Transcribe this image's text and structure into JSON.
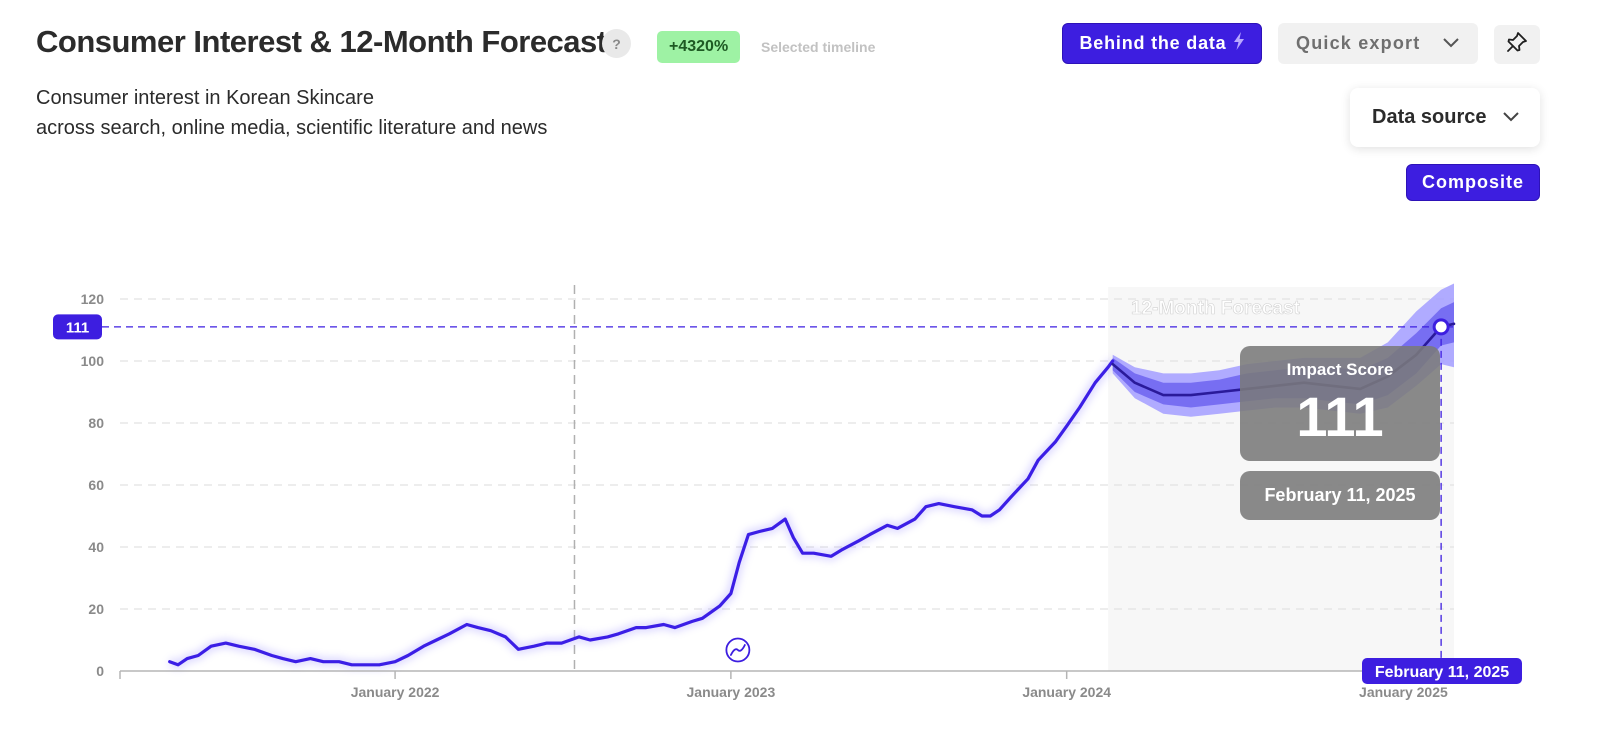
{
  "header": {
    "title": "Consumer Interest & 12-Month Forecast",
    "help_label": "?",
    "change_badge": "+4320%",
    "change_note": "Selected timeline",
    "subtitle_line1": "Consumer interest in Korean Skincare",
    "subtitle_line2": "across search, online media, scientific literature and news"
  },
  "toolbar": {
    "behind_label": "Behind the data",
    "export_label": "Quick export",
    "data_source_label": "Data source",
    "composite_label": "Composite"
  },
  "colors": {
    "accent": "#3d1ee0",
    "line": "#3b1ee6",
    "badge_bg": "#9ef2a4",
    "band_outer": "#a7a2ff",
    "band_inner": "#6d63f0"
  },
  "chart_data": {
    "type": "line",
    "title": "Consumer Interest & 12-Month Forecast",
    "ylim": [
      0,
      120
    ],
    "yticks": [
      0,
      20,
      40,
      60,
      80,
      100,
      120
    ],
    "x_tick_labels": [
      "January 2022",
      "January 2023",
      "January 2024",
      "January 2025"
    ],
    "x_tick_dates": [
      "2022-01-01",
      "2023-01-01",
      "2024-01-01",
      "2025-01-01"
    ],
    "xlim": [
      "2021-03-08",
      "2025-02-25"
    ],
    "grid": true,
    "forecast_label": "12-Month Forecast",
    "forecast_start": "2024-02-15",
    "marker_date": "2022-07-15",
    "series": [
      {
        "role": "historical",
        "points": [
          [
            "2021-05-01",
            3
          ],
          [
            "2021-05-10",
            2
          ],
          [
            "2021-05-20",
            4
          ],
          [
            "2021-06-01",
            5
          ],
          [
            "2021-06-15",
            8
          ],
          [
            "2021-07-01",
            9
          ],
          [
            "2021-07-15",
            8
          ],
          [
            "2021-08-01",
            7
          ],
          [
            "2021-08-20",
            5
          ],
          [
            "2021-09-01",
            4
          ],
          [
            "2021-09-15",
            3
          ],
          [
            "2021-10-01",
            4
          ],
          [
            "2021-10-15",
            3
          ],
          [
            "2021-11-01",
            3
          ],
          [
            "2021-11-15",
            2
          ],
          [
            "2021-12-01",
            2
          ],
          [
            "2021-12-15",
            2
          ],
          [
            "2022-01-01",
            3
          ],
          [
            "2022-01-15",
            5
          ],
          [
            "2022-02-01",
            8
          ],
          [
            "2022-02-15",
            10
          ],
          [
            "2022-03-01",
            12
          ],
          [
            "2022-03-20",
            15
          ],
          [
            "2022-04-01",
            14
          ],
          [
            "2022-04-15",
            13
          ],
          [
            "2022-05-01",
            11
          ],
          [
            "2022-05-15",
            7
          ],
          [
            "2022-06-01",
            8
          ],
          [
            "2022-06-15",
            9
          ],
          [
            "2022-07-01",
            9
          ],
          [
            "2022-07-20",
            11
          ],
          [
            "2022-08-01",
            10
          ],
          [
            "2022-08-20",
            11
          ],
          [
            "2022-09-01",
            12
          ],
          [
            "2022-09-20",
            14
          ],
          [
            "2022-10-01",
            14
          ],
          [
            "2022-10-20",
            15
          ],
          [
            "2022-11-01",
            14
          ],
          [
            "2022-11-20",
            16
          ],
          [
            "2022-12-01",
            17
          ],
          [
            "2022-12-20",
            21
          ],
          [
            "2023-01-01",
            25
          ],
          [
            "2023-01-10",
            35
          ],
          [
            "2023-01-20",
            44
          ],
          [
            "2023-02-01",
            45
          ],
          [
            "2023-02-15",
            46
          ],
          [
            "2023-03-01",
            49
          ],
          [
            "2023-03-10",
            43
          ],
          [
            "2023-03-20",
            38
          ],
          [
            "2023-04-01",
            38
          ],
          [
            "2023-04-20",
            37
          ],
          [
            "2023-05-01",
            39
          ],
          [
            "2023-05-20",
            42
          ],
          [
            "2023-06-01",
            44
          ],
          [
            "2023-06-20",
            47
          ],
          [
            "2023-07-01",
            46
          ],
          [
            "2023-07-20",
            49
          ],
          [
            "2023-08-01",
            53
          ],
          [
            "2023-08-15",
            54
          ],
          [
            "2023-09-01",
            53
          ],
          [
            "2023-09-20",
            52
          ],
          [
            "2023-10-01",
            50
          ],
          [
            "2023-10-10",
            50
          ],
          [
            "2023-10-20",
            52
          ],
          [
            "2023-11-01",
            56
          ],
          [
            "2023-11-20",
            62
          ],
          [
            "2023-12-01",
            68
          ],
          [
            "2023-12-20",
            74
          ],
          [
            "2024-01-01",
            79
          ],
          [
            "2024-01-15",
            85
          ],
          [
            "2024-02-01",
            93
          ],
          [
            "2024-02-15",
            98
          ],
          [
            "2024-02-20",
            100
          ]
        ]
      },
      {
        "role": "forecast",
        "points": [
          [
            "2024-02-20",
            99
          ],
          [
            "2024-03-15",
            93
          ],
          [
            "2024-04-15",
            89
          ],
          [
            "2024-05-15",
            89
          ],
          [
            "2024-06-15",
            90
          ],
          [
            "2024-07-15",
            91
          ],
          [
            "2024-08-15",
            92
          ],
          [
            "2024-09-15",
            93
          ],
          [
            "2024-10-15",
            92
          ],
          [
            "2024-11-15",
            91
          ],
          [
            "2024-12-15",
            95
          ],
          [
            "2025-01-15",
            102
          ],
          [
            "2025-02-11",
            111
          ],
          [
            "2025-02-25",
            112
          ]
        ],
        "inner_band": [
          [
            "2024-02-20",
            101,
            97
          ],
          [
            "2024-03-15",
            96,
            90
          ],
          [
            "2024-04-15",
            93,
            86
          ],
          [
            "2024-05-15",
            93,
            85
          ],
          [
            "2024-06-15",
            94,
            86
          ],
          [
            "2024-07-15",
            96,
            87
          ],
          [
            "2024-08-15",
            97,
            88
          ],
          [
            "2024-09-15",
            98,
            88
          ],
          [
            "2024-10-15",
            98,
            87
          ],
          [
            "2024-11-15",
            97,
            86
          ],
          [
            "2024-12-15",
            101,
            89
          ],
          [
            "2025-01-15",
            109,
            96
          ],
          [
            "2025-02-11",
            117,
            105
          ],
          [
            "2025-02-25",
            119,
            106
          ]
        ],
        "outer_band": [
          [
            "2024-02-20",
            102,
            96
          ],
          [
            "2024-03-15",
            98,
            88
          ],
          [
            "2024-04-15",
            96,
            83
          ],
          [
            "2024-05-15",
            96,
            82
          ],
          [
            "2024-06-15",
            97,
            83
          ],
          [
            "2024-07-15",
            99,
            84
          ],
          [
            "2024-08-15",
            100,
            85
          ],
          [
            "2024-09-15",
            101,
            85
          ],
          [
            "2024-10-15",
            101,
            84
          ],
          [
            "2024-11-15",
            101,
            83
          ],
          [
            "2024-12-15",
            106,
            85
          ],
          [
            "2025-01-15",
            116,
            92
          ],
          [
            "2025-02-11",
            123,
            99
          ],
          [
            "2025-02-25",
            125,
            98
          ]
        ]
      }
    ],
    "highlight": {
      "value": 111,
      "value_label": "111",
      "date": "2025-02-11",
      "date_label": "February 11, 2025",
      "score_title": "Impact Score"
    }
  }
}
